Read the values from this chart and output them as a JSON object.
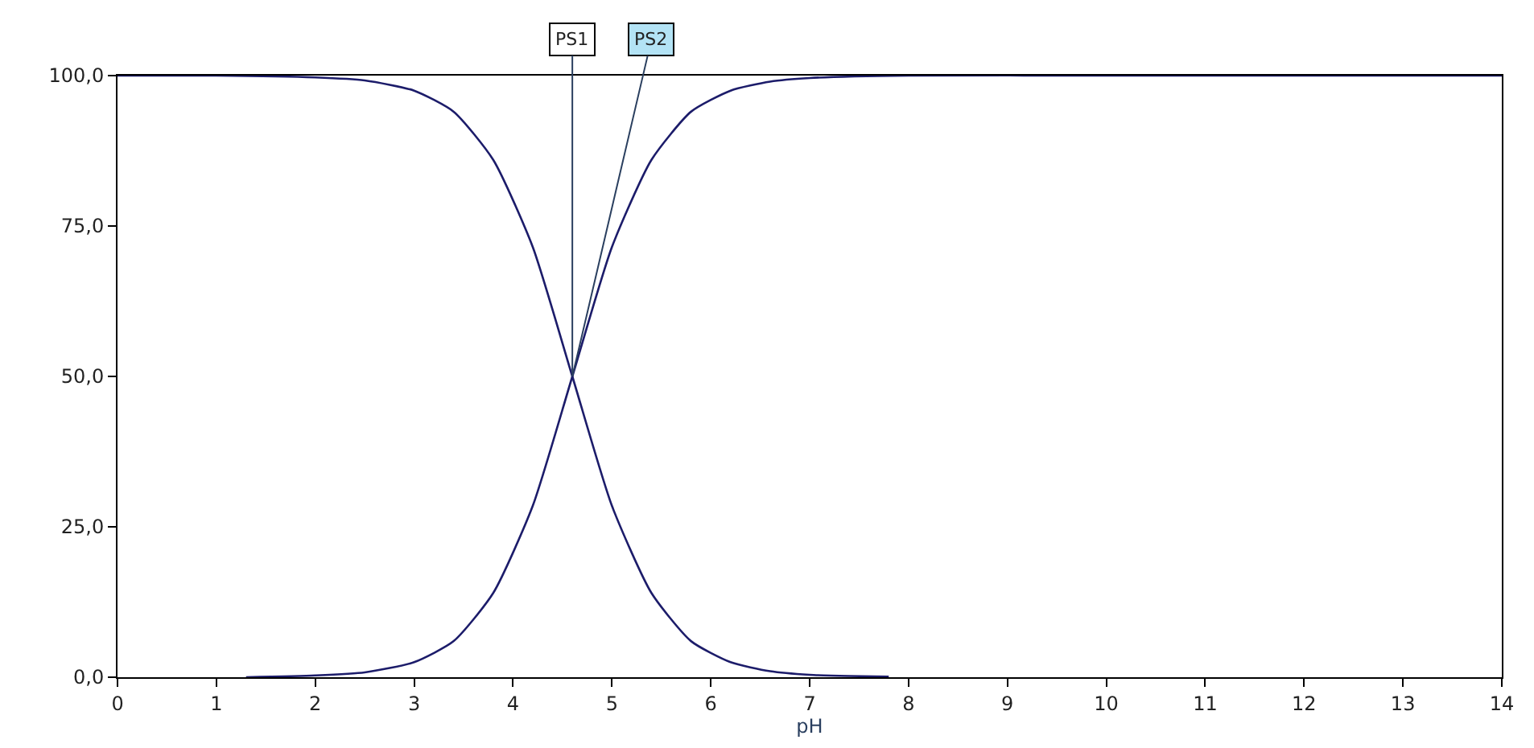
{
  "chart_data": {
    "type": "line",
    "xlabel": "pH",
    "series": [
      {
        "color": "#1c1c6a",
        "x": [
          0,
          1,
          2,
          2.5,
          3,
          3.4,
          3.8,
          4.2,
          4.6,
          5.0,
          5.4,
          5.8,
          6.2,
          6.6,
          7.0,
          7.4,
          7.8
        ],
        "values": [
          100,
          100,
          99.7,
          99.2,
          97.5,
          94,
          86,
          71.5,
          50,
          28.5,
          14,
          6,
          2.5,
          1,
          0.4,
          0.2,
          0.1
        ]
      },
      {
        "color": "#1c1c6a",
        "x": [
          1.3,
          2,
          2.5,
          3,
          3.4,
          3.8,
          4.2,
          4.6,
          5.0,
          5.4,
          5.8,
          6.2,
          6.6,
          7.0,
          8,
          10,
          12,
          14
        ],
        "values": [
          0,
          0.3,
          0.8,
          2.5,
          6,
          14,
          28.5,
          50,
          71.5,
          86,
          94,
          97.5,
          99,
          99.6,
          100,
          100,
          100,
          100
        ]
      }
    ],
    "annotations": [
      {
        "text": "PS1",
        "x": 4.6,
        "y": 50
      },
      {
        "text": "PS2",
        "x": 4.6,
        "y": 50
      }
    ],
    "xlim": [
      0,
      14
    ],
    "xticks": [
      0,
      1,
      2,
      3,
      4,
      5,
      6,
      7,
      8,
      9,
      10,
      11,
      12,
      13,
      14
    ],
    "ylim": [
      0,
      100
    ],
    "yticks": [
      {
        "value": 0,
        "label": "0,0"
      },
      {
        "value": 25,
        "label": "25,0"
      },
      {
        "value": 50,
        "label": "50,0"
      },
      {
        "value": 75,
        "label": "75,0"
      },
      {
        "value": 100,
        "label": "100,0"
      }
    ],
    "marker": "none",
    "line_style": "solid"
  }
}
